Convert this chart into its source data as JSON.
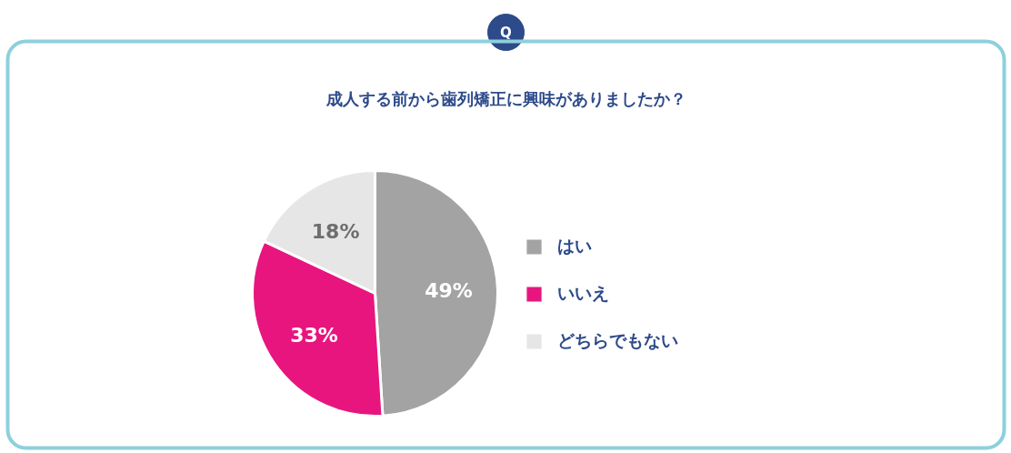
{
  "chart_data": {
    "type": "pie",
    "title": "成人する前から歯列矯正に興味がありましたか？",
    "annotations": [
      "Q"
    ],
    "categories": [
      "はい",
      "いいえ",
      "どちらでもない"
    ],
    "values": [
      49,
      33,
      18
    ],
    "colors": [
      "#a3a3a3",
      "#e8157f",
      "#e6e6e6"
    ],
    "value_labels": [
      "49%",
      "33%",
      "18%"
    ],
    "legend": "right"
  }
}
